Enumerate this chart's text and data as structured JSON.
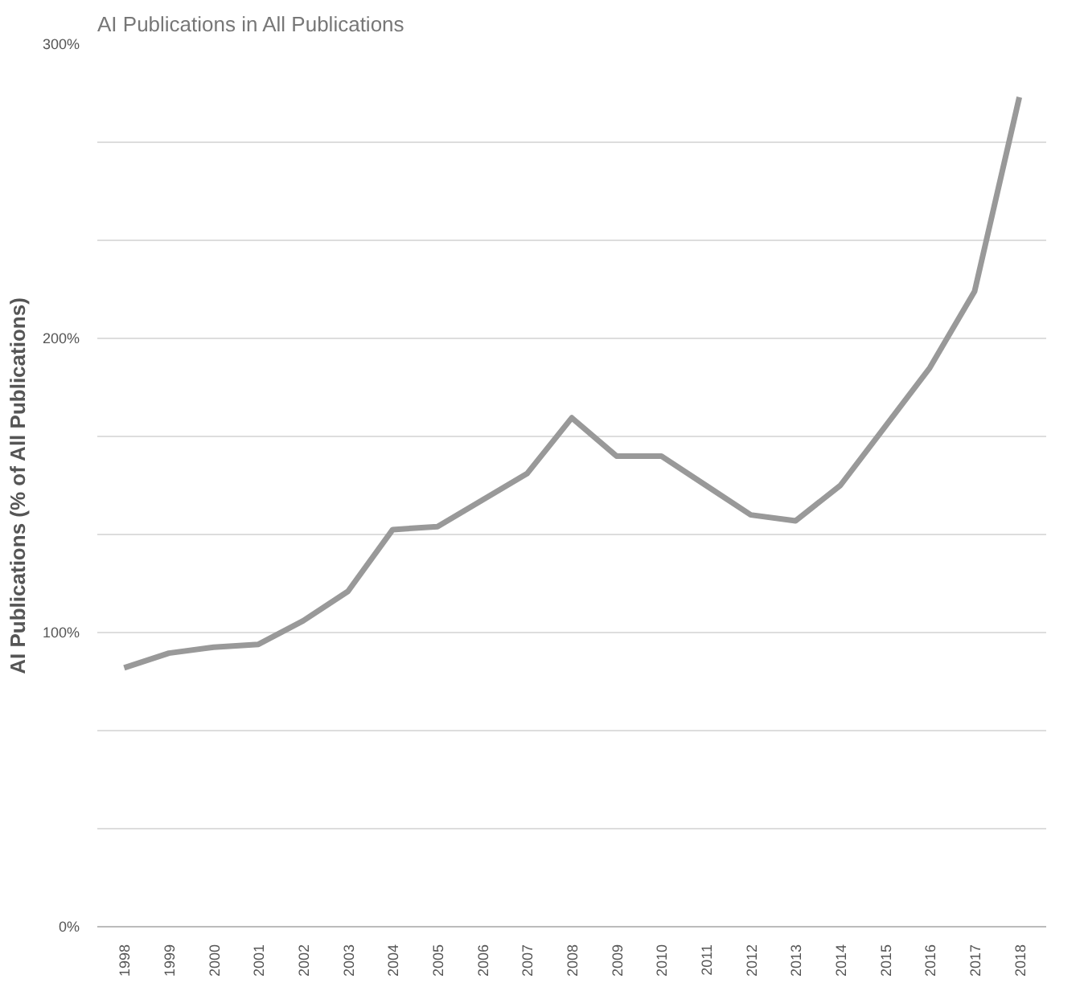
{
  "chart_data": {
    "type": "line",
    "title": "AI Publications in All Publications",
    "ylabel": "AI Publications (% of All Publications)",
    "categories": [
      "1998",
      "1999",
      "2000",
      "2001",
      "2002",
      "2003",
      "2004",
      "2005",
      "2006",
      "2007",
      "2008",
      "2009",
      "2010",
      "2011",
      "2012",
      "2013",
      "2014",
      "2015",
      "2016",
      "2017",
      "2018"
    ],
    "series": [
      {
        "color": "#999999",
        "values": [
          88,
          93,
          95,
          96,
          104,
          114,
          135,
          136,
          145,
          154,
          173,
          160,
          160,
          150,
          140,
          138,
          150,
          170,
          190,
          216,
          282
        ]
      }
    ],
    "ylim": [
      0,
      300
    ],
    "yticks": [
      {
        "value": 0,
        "label": "0%"
      },
      {
        "value": 33.33,
        "label": null
      },
      {
        "value": 66.67,
        "label": null
      },
      {
        "value": 100,
        "label": "100%"
      },
      {
        "value": 133.33,
        "label": null
      },
      {
        "value": 166.67,
        "label": null
      },
      {
        "value": 200,
        "label": "200%"
      },
      {
        "value": 233.33,
        "label": null
      },
      {
        "value": 266.67,
        "label": null
      },
      {
        "value": 300,
        "label": "300%"
      }
    ],
    "grid": "y",
    "marker": "none",
    "line_style": "solid"
  }
}
